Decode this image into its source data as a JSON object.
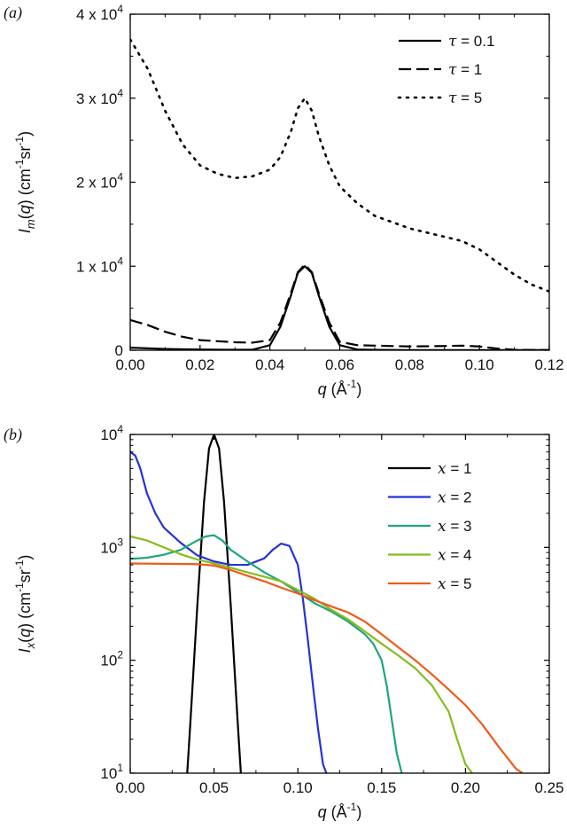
{
  "chart_data": [
    {
      "panel": "(a)",
      "type": "line",
      "xlabel": "q (Å-1)",
      "ylabel": "Im(q) (cm-1sr-1)",
      "xlim": [
        0,
        0.12
      ],
      "ylim": [
        0,
        40000
      ],
      "xticks": [
        0,
        0.02,
        0.04,
        0.06,
        0.08,
        0.1,
        0.12
      ],
      "xtick_labels": [
        "0.00",
        "0.02",
        "0.04",
        "0.06",
        "0.08",
        "0.10",
        "0.12"
      ],
      "yticks": [
        0,
        10000,
        20000,
        30000,
        40000
      ],
      "ytick_labels": [
        {
          "mant": "0",
          "exp": ""
        },
        {
          "mant": "1 x 10",
          "exp": "4"
        },
        {
          "mant": "2 x 10",
          "exp": "4"
        },
        {
          "mant": "3 x 10",
          "exp": "4"
        },
        {
          "mant": "4 x 10",
          "exp": "4"
        }
      ],
      "legend": "top-right",
      "series": [
        {
          "name": "τ = 0.1",
          "sym": "τ",
          "val": " = 0.1",
          "style": "solid",
          "color": "#000000",
          "x": [
            0,
            0.01,
            0.02,
            0.03,
            0.035,
            0.04,
            0.043,
            0.046,
            0.048,
            0.05,
            0.052,
            0.054,
            0.057,
            0.06,
            0.065,
            0.07,
            0.08,
            0.09,
            0.1,
            0.11,
            0.12
          ],
          "y": [
            300,
            150,
            80,
            50,
            60,
            600,
            2800,
            6500,
            9200,
            10000,
            9200,
            6500,
            2800,
            600,
            80,
            40,
            20,
            15,
            10,
            10,
            10
          ]
        },
        {
          "name": "τ = 1",
          "sym": "τ",
          "val": " = 1",
          "style": "dashed",
          "color": "#000000",
          "x": [
            0,
            0.005,
            0.01,
            0.015,
            0.02,
            0.03,
            0.035,
            0.04,
            0.043,
            0.046,
            0.048,
            0.05,
            0.052,
            0.054,
            0.057,
            0.06,
            0.065,
            0.07,
            0.08,
            0.09,
            0.095,
            0.1,
            0.105,
            0.11,
            0.12
          ],
          "y": [
            3600,
            3000,
            2200,
            1600,
            1200,
            950,
            900,
            1200,
            3300,
            6800,
            9300,
            10200,
            9300,
            6800,
            3300,
            1000,
            600,
            550,
            450,
            500,
            550,
            450,
            200,
            50,
            20
          ]
        },
        {
          "name": "τ = 5",
          "sym": "τ",
          "val": " = 5",
          "style": "dotted",
          "color": "#000000",
          "x": [
            0,
            0.005,
            0.01,
            0.015,
            0.02,
            0.025,
            0.03,
            0.035,
            0.04,
            0.043,
            0.046,
            0.048,
            0.05,
            0.052,
            0.054,
            0.057,
            0.06,
            0.065,
            0.07,
            0.08,
            0.09,
            0.095,
            0.1,
            0.105,
            0.11,
            0.115,
            0.12
          ],
          "y": [
            37000,
            33500,
            28500,
            24500,
            22000,
            21000,
            20500,
            20700,
            21500,
            23000,
            26000,
            28800,
            30000,
            28500,
            25500,
            22000,
            19500,
            17500,
            16000,
            14500,
            13500,
            13000,
            12000,
            10500,
            9000,
            7800,
            7000
          ]
        }
      ]
    },
    {
      "panel": "(b)",
      "type": "line",
      "yscale": "log",
      "xlabel": "q (Å-1)",
      "ylabel": "Ix(q) (cm-1sr-1)",
      "xlim": [
        0,
        0.25
      ],
      "ylim": [
        10,
        10000
      ],
      "xticks": [
        0,
        0.05,
        0.1,
        0.15,
        0.2,
        0.25
      ],
      "xtick_labels": [
        "0.00",
        "0.05",
        "0.10",
        "0.15",
        "0.20",
        "0.25"
      ],
      "yticks": [
        10,
        100,
        1000,
        10000
      ],
      "ytick_labels": [
        {
          "mant": "10",
          "exp": "1"
        },
        {
          "mant": "10",
          "exp": "2"
        },
        {
          "mant": "10",
          "exp": "3"
        },
        {
          "mant": "10",
          "exp": "4"
        }
      ],
      "legend": "top-right",
      "series": [
        {
          "name": "x = 1",
          "sym": "x",
          "val": " = 1",
          "color": "#000000",
          "x": [
            0.034,
            0.036,
            0.04,
            0.044,
            0.047,
            0.05,
            0.053,
            0.056,
            0.06,
            0.064,
            0.066
          ],
          "y": [
            10,
            30,
            300,
            2500,
            7500,
            10000,
            7500,
            2500,
            300,
            30,
            10
          ]
        },
        {
          "name": "x = 2",
          "sym": "x",
          "val": " = 2",
          "color": "#2433d6",
          "x": [
            0,
            0.003,
            0.006,
            0.01,
            0.015,
            0.02,
            0.03,
            0.04,
            0.05,
            0.06,
            0.07,
            0.08,
            0.085,
            0.09,
            0.095,
            0.1,
            0.103,
            0.106,
            0.109,
            0.112,
            0.115,
            0.117
          ],
          "y": [
            7000,
            6500,
            5000,
            3000,
            2000,
            1500,
            1100,
            850,
            750,
            700,
            700,
            800,
            950,
            1080,
            1030,
            700,
            350,
            150,
            60,
            25,
            12,
            10
          ]
        },
        {
          "name": "x = 3",
          "sym": "x",
          "val": " = 3",
          "color": "#1fa57f",
          "x": [
            0,
            0.01,
            0.02,
            0.03,
            0.04,
            0.045,
            0.05,
            0.055,
            0.06,
            0.07,
            0.08,
            0.09,
            0.1,
            0.11,
            0.12,
            0.13,
            0.14,
            0.145,
            0.15,
            0.153,
            0.156,
            0.159,
            0.162
          ],
          "y": [
            790,
            810,
            860,
            950,
            1150,
            1250,
            1280,
            1150,
            950,
            750,
            600,
            500,
            400,
            320,
            270,
            220,
            170,
            140,
            100,
            60,
            30,
            15,
            10
          ]
        },
        {
          "name": "x = 4",
          "sym": "x",
          "val": " = 4",
          "color": "#86bc1f",
          "x": [
            0,
            0.01,
            0.02,
            0.03,
            0.04,
            0.05,
            0.06,
            0.07,
            0.08,
            0.09,
            0.1,
            0.11,
            0.12,
            0.13,
            0.14,
            0.15,
            0.16,
            0.17,
            0.18,
            0.19,
            0.195,
            0.2,
            0.204
          ],
          "y": [
            1250,
            1150,
            1000,
            870,
            780,
            720,
            660,
            600,
            550,
            500,
            420,
            350,
            280,
            230,
            180,
            140,
            110,
            85,
            60,
            35,
            20,
            12,
            10
          ]
        },
        {
          "name": "x = 5",
          "sym": "x",
          "val": " = 5",
          "color": "#f05a1a",
          "x": [
            0,
            0.02,
            0.04,
            0.05,
            0.06,
            0.07,
            0.08,
            0.09,
            0.1,
            0.11,
            0.12,
            0.13,
            0.14,
            0.15,
            0.16,
            0.17,
            0.18,
            0.19,
            0.2,
            0.21,
            0.22,
            0.23,
            0.234
          ],
          "y": [
            720,
            715,
            710,
            690,
            630,
            560,
            500,
            440,
            390,
            340,
            300,
            265,
            220,
            170,
            130,
            100,
            75,
            55,
            40,
            27,
            17,
            11,
            10
          ]
        }
      ]
    }
  ]
}
